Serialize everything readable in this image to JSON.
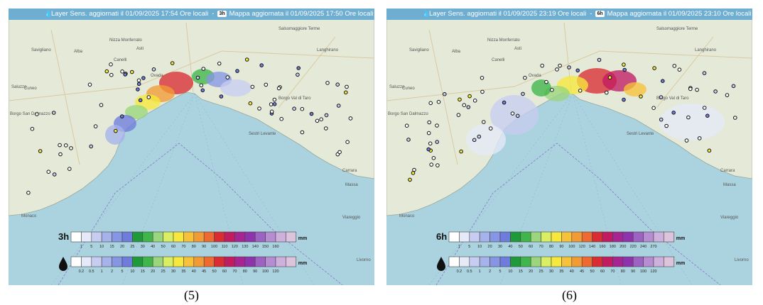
{
  "scale_colors": [
    "#ffffff",
    "#e6e9f7",
    "#c6cdf0",
    "#a6b2ea",
    "#8796e4",
    "#6e7cdc",
    "#1f9a3a",
    "#3fb54a",
    "#9bd67c",
    "#d9ee63",
    "#f6e83c",
    "#f7c23a",
    "#f29b35",
    "#ee6a30",
    "#d92d33",
    "#c21c61",
    "#a72592",
    "#8f33ad",
    "#9e62c2",
    "#b58dd0",
    "#cdb0dc",
    "#dcc4dc",
    "#ecd8de"
  ],
  "panels": [
    {
      "caption": "(5)",
      "header_left": "Layer Sens. aggiornati il 01/09/2025 17:54 Ore locali",
      "header_sep": "-",
      "header_badge": "3h",
      "header_right": "Mappa aggiornata il 01/09/2025 17:50 Ore locali",
      "legend_label": "3h",
      "legend_unit": "mm",
      "legend_ticks": [
        "1",
        "5",
        "10",
        "15",
        "20",
        "25",
        "30",
        "40",
        "50",
        "60",
        "70",
        "80",
        "90",
        "100",
        "110",
        "120",
        "130",
        "140",
        "150",
        "160"
      ],
      "sensor_unit": "mm",
      "sensor_ticks": [
        "0.2",
        "0.5",
        "1",
        "2",
        "5",
        "10",
        "15",
        "20",
        "25",
        "30",
        "35",
        "40",
        "45",
        "50",
        "60",
        "70",
        "80",
        "90",
        "100",
        "120"
      ],
      "map_labels": [
        "Monaco",
        "Cuneo",
        "Borgo San Dalmazzo",
        "Savigliano",
        "Alba",
        "Asti",
        "Nizza Monferrato",
        "Canelli",
        "Saluzzo",
        "Ovada",
        "Salsomaggiore Terme",
        "Langhirano",
        "Borgo Val di Taro",
        "Sestri Levante",
        "Carrara",
        "Massa",
        "Viareggio",
        "Livorno"
      ]
    },
    {
      "caption": "(6)",
      "header_left": "Layer Sens. aggiornati il 01/09/2025 23:19 Ore locali",
      "header_sep": "-",
      "header_badge": "6h",
      "header_right": "Mappa aggiornata il 01/09/2025 23:10 Ore locali",
      "legend_label": "6h",
      "legend_unit": "mm",
      "legend_ticks": [
        "1",
        "5",
        "10",
        "20",
        "30",
        "40",
        "50",
        "60",
        "70",
        "80",
        "90",
        "100",
        "120",
        "140",
        "160",
        "180",
        "200",
        "220",
        "240",
        "270"
      ],
      "sensor_unit": "mm",
      "sensor_ticks": [
        "0.2",
        "0.5",
        "1",
        "2",
        "5",
        "10",
        "15",
        "20",
        "25",
        "30",
        "35",
        "40",
        "45",
        "50",
        "60",
        "70",
        "80",
        "90",
        "100",
        "120"
      ],
      "map_labels": [
        "Monaco",
        "Cuneo",
        "Borgo San Dalmazzo",
        "Savigliano",
        "Alba",
        "Asti",
        "Nizza Monferrato",
        "Canelli",
        "Saluzzo",
        "Ovada",
        "Salsomaggiore Terme",
        "Langhirano",
        "Borgo Val di Taro",
        "Sestri Levante",
        "Carrara",
        "Massa",
        "Viareggio",
        "Livorno"
      ]
    }
  ]
}
